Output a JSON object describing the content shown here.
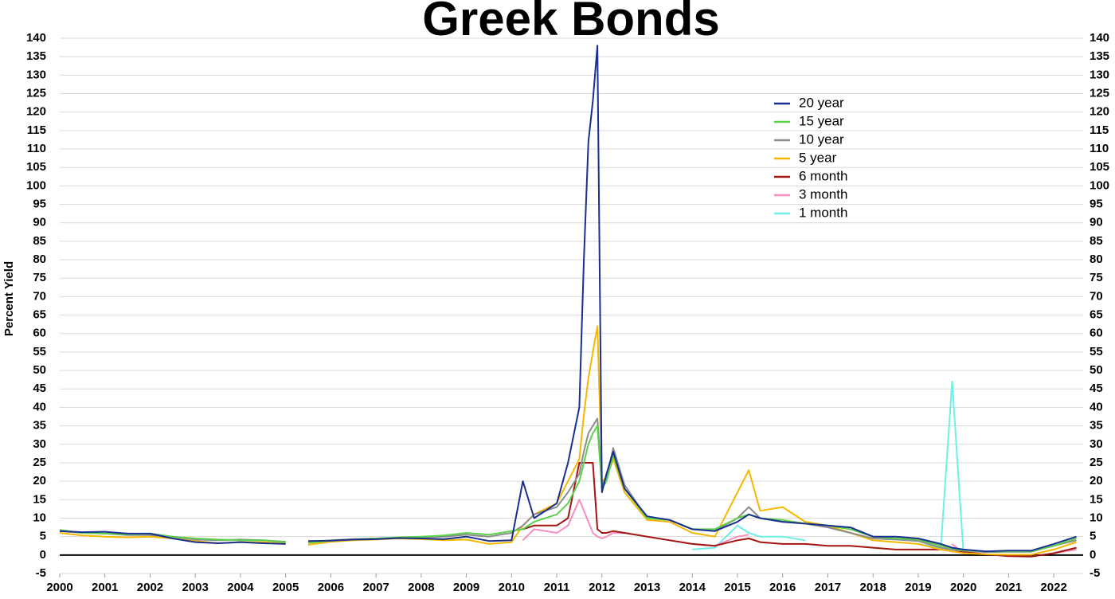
{
  "chart_data": {
    "type": "line",
    "title": "Greek Bonds",
    "y_label": "Percent Yield",
    "grid": true,
    "legend_position": "upper-right",
    "xlim": [
      2000,
      2022.65
    ],
    "ylim": [
      -5,
      140
    ],
    "xticks": [
      2000,
      2001,
      2002,
      2003,
      2004,
      2005,
      2006,
      2007,
      2008,
      2009,
      2010,
      2011,
      2012,
      2013,
      2014,
      2015,
      2016,
      2017,
      2018,
      2019,
      2020,
      2021,
      2022
    ],
    "yticks": [
      -5,
      0,
      5,
      10,
      15,
      20,
      25,
      30,
      35,
      40,
      45,
      50,
      55,
      60,
      65,
      70,
      75,
      80,
      85,
      90,
      95,
      100,
      105,
      110,
      115,
      120,
      125,
      130,
      135,
      140
    ],
    "x": [
      2000,
      2000.5,
      2001,
      2001.5,
      2002,
      2002.5,
      2003,
      2003.5,
      2004,
      2004.5,
      2005,
      2005.25,
      2005.5,
      2006,
      2006.5,
      2007,
      2007.5,
      2008,
      2008.5,
      2009,
      2009.5,
      2010,
      2010.25,
      2010.5,
      2011,
      2011.25,
      2011.5,
      2011.6,
      2011.7,
      2011.8,
      2011.9,
      2012,
      2012.1,
      2012.25,
      2012.5,
      2013,
      2013.5,
      2014,
      2014.5,
      2015,
      2015.25,
      2015.5,
      2016,
      2016.5,
      2017,
      2017.5,
      2018,
      2018.5,
      2019,
      2019.5,
      2019.75,
      2020,
      2020.5,
      2021,
      2021.5,
      2022,
      2022.5
    ],
    "series": [
      {
        "name": "20 year",
        "color": "#1a2f8f",
        "values": [
          6.5,
          6.2,
          6.3,
          5.8,
          5.8,
          4.5,
          3.5,
          3.2,
          3.5,
          3.2,
          3.0,
          null,
          3.8,
          3.9,
          4.2,
          4.3,
          4.6,
          4.5,
          4.3,
          5.0,
          3.8,
          4.0,
          20,
          10,
          14,
          25,
          40,
          80,
          112,
          123,
          138,
          17,
          22,
          28,
          18,
          10.5,
          9.5,
          7,
          6.5,
          9,
          11,
          10,
          9,
          8.5,
          8,
          7.5,
          5,
          5,
          4.5,
          3,
          2,
          1.5,
          1,
          1.2,
          1.2,
          3,
          5
        ]
      },
      {
        "name": "15 year",
        "color": "#5bd04a",
        "values": [
          6.8,
          6.0,
          5.8,
          5.6,
          5.8,
          5.0,
          4.5,
          4.2,
          4.0,
          4.0,
          3.5,
          null,
          3.3,
          3.9,
          4.2,
          4.5,
          4.8,
          5.0,
          5.3,
          6.0,
          5.5,
          6.5,
          7,
          9,
          11,
          14,
          20,
          25,
          30,
          33,
          35,
          18,
          20,
          27,
          18,
          10,
          9.5,
          7,
          7,
          10,
          11,
          10,
          9.5,
          8.5,
          8,
          7,
          5,
          4.5,
          4.2,
          2.5,
          1.8,
          1.3,
          1,
          1,
          1,
          2.5,
          4.5
        ]
      },
      {
        "name": "10 year",
        "color": "#8c8c8c",
        "values": [
          6.5,
          6.0,
          5.8,
          5.4,
          5.4,
          5.0,
          4.2,
          4.0,
          4.2,
          4.0,
          3.6,
          null,
          3.4,
          4.0,
          4.3,
          4.5,
          4.7,
          4.8,
          5.0,
          5.5,
          5,
          6,
          8,
          11,
          13,
          17,
          22,
          28,
          33,
          35,
          37,
          19,
          21,
          29,
          19,
          10,
          9.5,
          7,
          6.5,
          10,
          13,
          10,
          9,
          8.5,
          7.5,
          6,
          4.5,
          4.2,
          3.8,
          2,
          1.5,
          1.2,
          0.8,
          0.9,
          0.9,
          2.5,
          4
        ]
      },
      {
        "name": "5 year",
        "color": "#f5b800",
        "values": [
          6,
          5.3,
          5.0,
          4.8,
          5.0,
          4.5,
          3.8,
          3.2,
          3.5,
          3.5,
          3.1,
          null,
          2.8,
          3.6,
          4.0,
          4.2,
          4.5,
          4.3,
          4.0,
          4.2,
          3.0,
          3.5,
          8,
          11,
          14,
          20,
          26,
          38,
          48,
          55,
          62,
          20,
          21,
          26,
          17,
          9.5,
          9,
          6,
          5,
          17,
          23,
          12,
          13,
          9,
          8,
          6,
          4,
          3.5,
          3,
          1.5,
          1,
          0.5,
          0.2,
          0.1,
          0.1,
          1.5,
          3.5
        ]
      },
      {
        "name": "6 month",
        "color": "#a31510",
        "values": [
          null,
          null,
          null,
          null,
          null,
          null,
          null,
          null,
          null,
          null,
          null,
          null,
          null,
          null,
          null,
          null,
          null,
          null,
          null,
          null,
          null,
          null,
          7,
          8,
          8,
          10,
          25,
          25,
          25,
          25,
          7,
          6,
          6,
          6.5,
          6,
          5,
          4,
          3,
          2.5,
          4,
          4.5,
          3.5,
          3,
          3,
          2.5,
          2.5,
          2,
          1.5,
          1.5,
          1.5,
          1,
          0.8,
          0.2,
          -0.3,
          -0.4,
          0.5,
          2
        ]
      },
      {
        "name": "3 month",
        "color": "#f48fc0",
        "values": [
          null,
          null,
          null,
          null,
          null,
          null,
          null,
          null,
          null,
          null,
          null,
          null,
          null,
          null,
          null,
          null,
          null,
          null,
          null,
          null,
          null,
          null,
          4,
          7,
          6,
          8,
          15,
          12,
          9,
          6,
          5,
          4.5,
          5,
          6,
          6,
          5,
          4,
          3,
          2.5,
          5,
          5.5,
          null,
          null,
          null,
          null,
          null,
          null,
          null,
          null,
          null,
          3,
          0.5,
          null,
          null,
          null,
          0.5,
          1.5
        ]
      },
      {
        "name": "1 month",
        "color": "#6ff0e4",
        "values": [
          null,
          null,
          null,
          null,
          null,
          null,
          null,
          null,
          null,
          null,
          null,
          null,
          null,
          null,
          null,
          null,
          null,
          null,
          null,
          null,
          null,
          null,
          null,
          null,
          null,
          null,
          null,
          null,
          null,
          null,
          null,
          null,
          null,
          null,
          null,
          null,
          null,
          1.5,
          2,
          8,
          6,
          5,
          5,
          4,
          null,
          null,
          null,
          null,
          3,
          2,
          47,
          0.5,
          null,
          null,
          null,
          0.5,
          1.5
        ]
      }
    ]
  }
}
